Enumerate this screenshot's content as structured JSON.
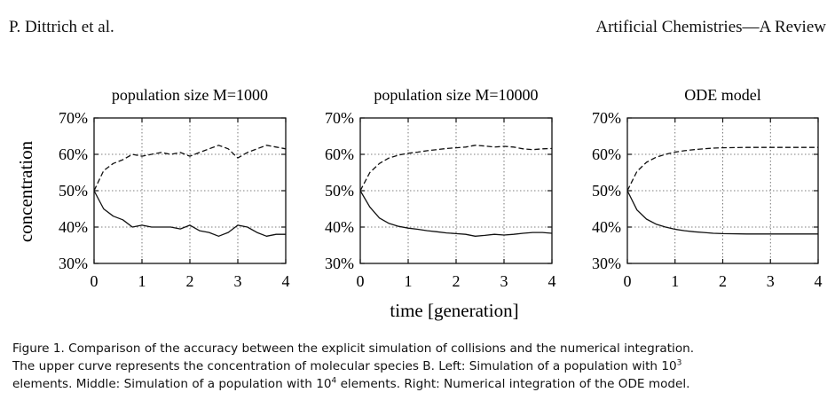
{
  "header": {
    "left": "P. Dittrich et al.",
    "right": "Artificial Chemistries—A Review"
  },
  "figure": {
    "ylabel": "concentration",
    "xlabel": "time [generation]"
  },
  "chart_data": [
    {
      "type": "line",
      "title": "population size M=1000",
      "xlabel": "time [generation]",
      "ylabel": "concentration",
      "xlim": [
        0,
        4
      ],
      "ylim": [
        30,
        70
      ],
      "x_ticks": [
        "0",
        "1",
        "2",
        "3",
        "4"
      ],
      "y_ticks": [
        "30%",
        "40%",
        "50%",
        "60%",
        "70%"
      ],
      "grid": true,
      "series": [
        {
          "style": "dashed",
          "x": [
            0,
            0.2,
            0.4,
            0.6,
            0.8,
            1.0,
            1.2,
            1.4,
            1.6,
            1.8,
            2.0,
            2.2,
            2.4,
            2.6,
            2.8,
            3.0,
            3.2,
            3.4,
            3.6,
            3.8,
            4.0
          ],
          "y": [
            50,
            55.5,
            57.5,
            58.5,
            60,
            59.5,
            60,
            60.5,
            60,
            60.5,
            59.5,
            60.5,
            61.5,
            62.5,
            61.5,
            59,
            60.5,
            61.5,
            62.5,
            62,
            61.5
          ]
        },
        {
          "style": "solid",
          "x": [
            0,
            0.2,
            0.4,
            0.6,
            0.8,
            1.0,
            1.2,
            1.4,
            1.6,
            1.8,
            2.0,
            2.2,
            2.4,
            2.6,
            2.8,
            3.0,
            3.2,
            3.4,
            3.6,
            3.8,
            4.0
          ],
          "y": [
            50,
            45,
            43,
            42,
            40,
            40.5,
            40,
            40,
            40,
            39.5,
            40.5,
            39,
            38.5,
            37.5,
            38.5,
            40.5,
            40,
            38.5,
            37.5,
            38,
            38
          ]
        }
      ]
    },
    {
      "type": "line",
      "title": "population size M=10000",
      "xlabel": "time [generation]",
      "ylabel": "concentration",
      "xlim": [
        0,
        4
      ],
      "ylim": [
        30,
        70
      ],
      "x_ticks": [
        "0",
        "1",
        "2",
        "3",
        "4"
      ],
      "y_ticks": [
        "30%",
        "40%",
        "50%",
        "60%",
        "70%"
      ],
      "grid": true,
      "series": [
        {
          "style": "dashed",
          "x": [
            0,
            0.2,
            0.4,
            0.6,
            0.8,
            1.0,
            1.2,
            1.4,
            1.6,
            1.8,
            2.0,
            2.2,
            2.4,
            2.6,
            2.8,
            3.0,
            3.2,
            3.4,
            3.6,
            3.8,
            4.0
          ],
          "y": [
            50,
            55,
            57.5,
            59,
            59.8,
            60.3,
            60.6,
            61,
            61.3,
            61.6,
            61.8,
            62,
            62.5,
            62.3,
            62,
            62.2,
            62,
            61.5,
            61.3,
            61.5,
            61.6
          ]
        },
        {
          "style": "solid",
          "x": [
            0,
            0.2,
            0.4,
            0.6,
            0.8,
            1.0,
            1.2,
            1.4,
            1.6,
            1.8,
            2.0,
            2.2,
            2.4,
            2.6,
            2.8,
            3.0,
            3.2,
            3.4,
            3.6,
            3.8,
            4.0
          ],
          "y": [
            50,
            45.5,
            42.5,
            41,
            40.2,
            39.7,
            39.4,
            39,
            38.7,
            38.4,
            38.2,
            38,
            37.5,
            37.7,
            38,
            37.8,
            38,
            38.3,
            38.5,
            38.5,
            38.3
          ]
        }
      ]
    },
    {
      "type": "line",
      "title": "ODE model",
      "xlabel": "time [generation]",
      "ylabel": "concentration",
      "xlim": [
        0,
        4
      ],
      "ylim": [
        30,
        70
      ],
      "x_ticks": [
        "0",
        "1",
        "2",
        "3",
        "4"
      ],
      "y_ticks": [
        "30%",
        "40%",
        "50%",
        "60%",
        "70%"
      ],
      "grid": true,
      "series": [
        {
          "style": "dashed",
          "x": [
            0,
            0.2,
            0.4,
            0.6,
            0.8,
            1.0,
            1.2,
            1.4,
            1.6,
            1.8,
            2.0,
            2.5,
            3.0,
            3.5,
            4.0
          ],
          "y": [
            50,
            55.3,
            57.8,
            59.2,
            60,
            60.6,
            61,
            61.3,
            61.5,
            61.7,
            61.8,
            61.9,
            61.9,
            61.9,
            61.9
          ]
        },
        {
          "style": "solid",
          "x": [
            0,
            0.2,
            0.4,
            0.6,
            0.8,
            1.0,
            1.2,
            1.4,
            1.6,
            1.8,
            2.0,
            2.5,
            3.0,
            3.5,
            4.0
          ],
          "y": [
            50,
            44.7,
            42.2,
            40.8,
            40,
            39.4,
            39,
            38.7,
            38.5,
            38.3,
            38.2,
            38.1,
            38.1,
            38.1,
            38.1
          ]
        }
      ]
    }
  ],
  "caption": {
    "line1": "Figure 1.  Comparison of the accuracy between the explicit simulation of collisions and the numerical integration.",
    "line2": "The upper curve represents the concentration of molecular species B. Left: Simulation of a population with 10",
    "line2_sup": "3",
    "line3a": "elements. Middle: Simulation of a population with 10",
    "line3_sup": "4",
    "line3b": " elements. Right: Numerical integration of the ODE model."
  }
}
